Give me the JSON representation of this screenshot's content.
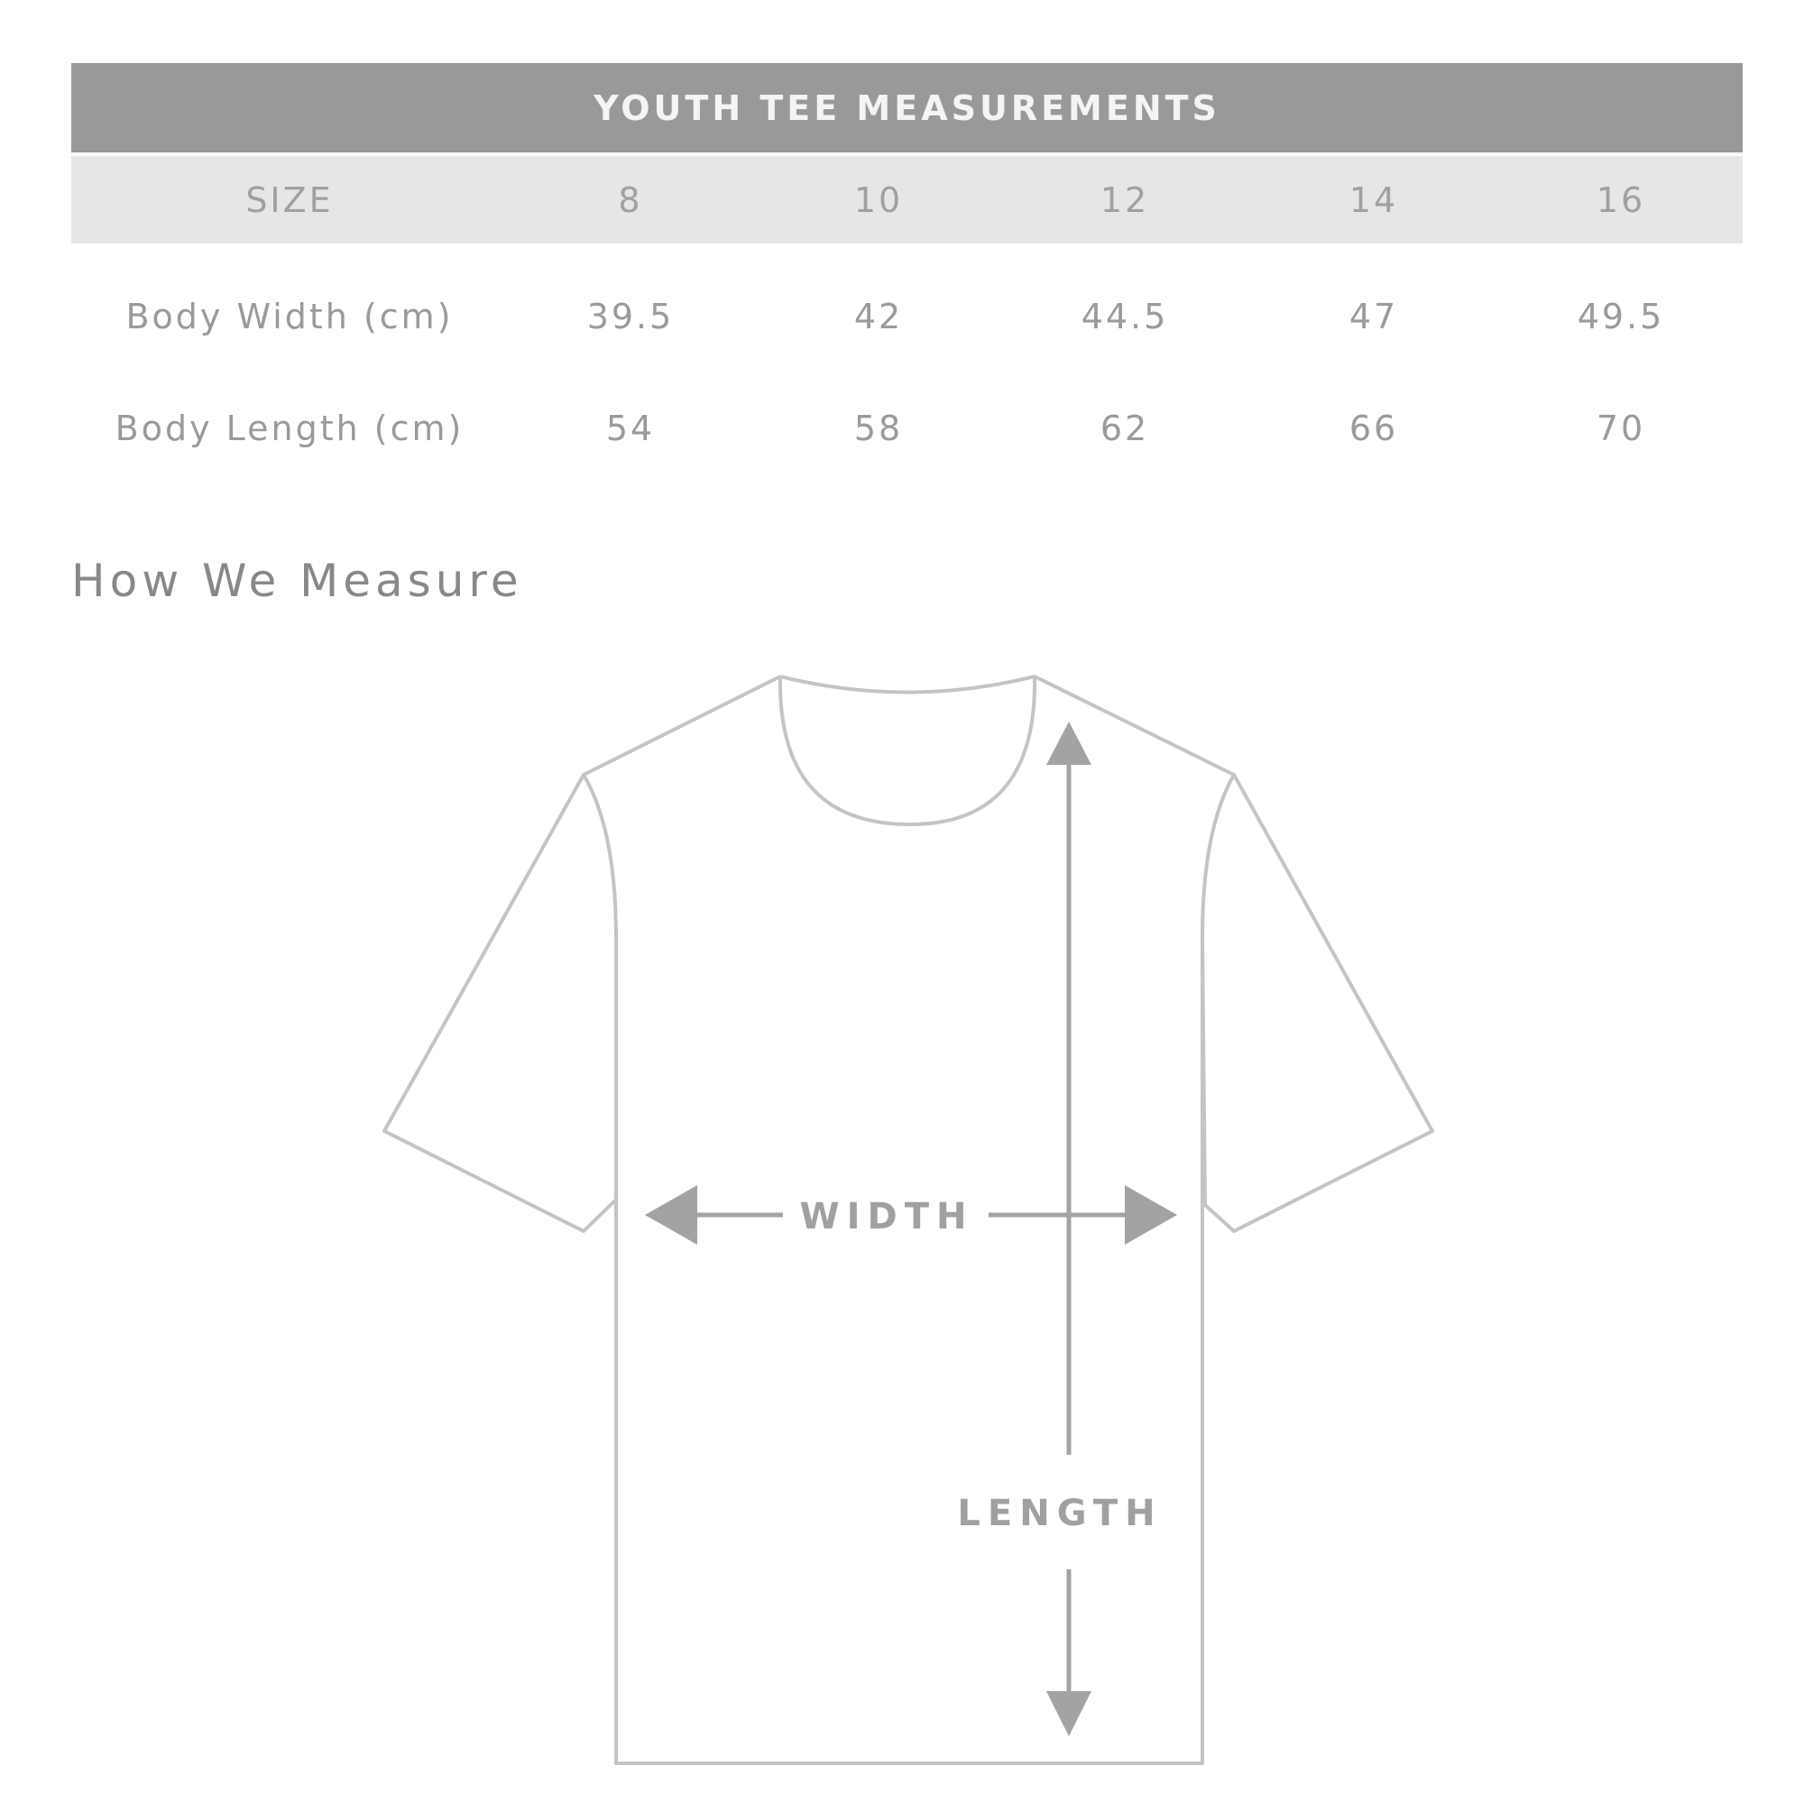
{
  "table": {
    "title": "YOUTH TEE MEASUREMENTS",
    "header": {
      "label": "SIZE",
      "sizes": [
        "8",
        "10",
        "12",
        "14",
        "16"
      ]
    },
    "rows": [
      {
        "label": "Body Width (cm)",
        "values": [
          "39.5",
          "42",
          "44.5",
          "47",
          "49.5"
        ]
      },
      {
        "label": "Body Length (cm)",
        "values": [
          "54",
          "58",
          "62",
          "66",
          "70"
        ]
      }
    ]
  },
  "measure": {
    "heading": "How We Measure",
    "width_label": "WIDTH",
    "length_label": "LENGTH"
  },
  "colors": {
    "header_bg": "#999999",
    "size_row_bg": "#e6e6e6",
    "text": "#9a9a9a",
    "outline": "#c4c4c4",
    "arrow": "#a3a3a6"
  }
}
